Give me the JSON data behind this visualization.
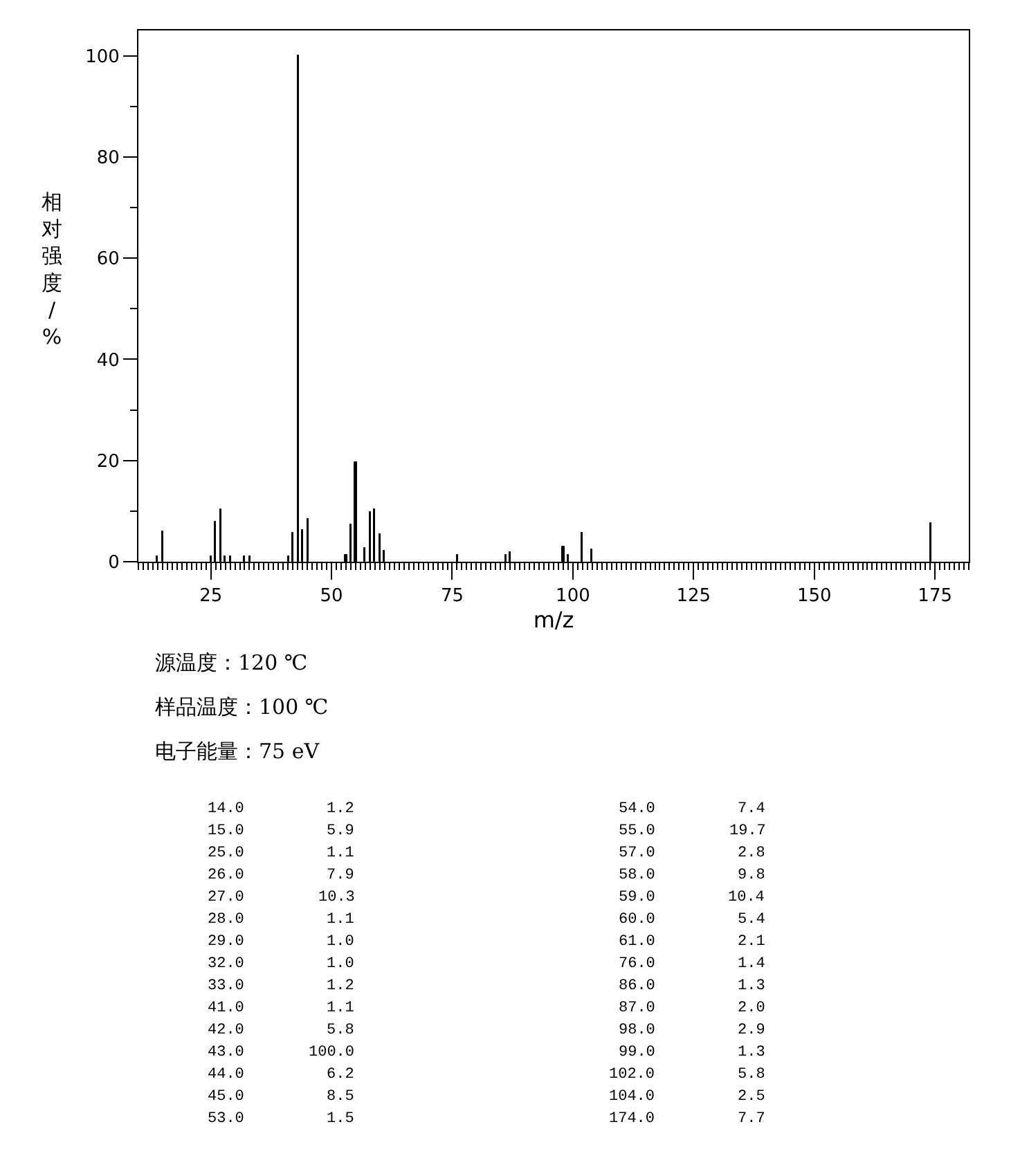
{
  "chart_data": {
    "type": "bar",
    "xlabel": "m/z",
    "ylabel": "相对强度/%",
    "color": "#000000",
    "x": [
      14,
      15,
      25,
      26,
      27,
      28,
      29,
      32,
      33,
      41,
      42,
      43,
      44,
      45,
      53,
      54,
      55,
      57,
      58,
      59,
      60,
      61,
      76,
      86,
      87,
      98,
      99,
      102,
      104,
      174
    ],
    "values": [
      1.2,
      5.9,
      1.1,
      7.9,
      10.3,
      1.1,
      1.0,
      1.0,
      1.2,
      1.1,
      5.8,
      100.0,
      6.2,
      8.5,
      1.5,
      7.4,
      19.7,
      2.8,
      9.8,
      10.4,
      5.4,
      2.1,
      1.4,
      1.3,
      2.0,
      2.9,
      1.3,
      5.8,
      2.5,
      7.7
    ],
    "xlim": [
      10,
      182
    ],
    "ylim": [
      0,
      105
    ],
    "xticks": [
      25,
      50,
      75,
      100,
      125,
      150,
      175
    ],
    "yticks": [
      0,
      20,
      40,
      60,
      80,
      100
    ],
    "annotations": [
      "源温度：120 ℃",
      "样品温度：100 ℃",
      "电子能量：75 eV",
      "14.0",
      "1.2",
      "15.0",
      "5.9",
      "25.0",
      "1.1",
      "26.0",
      "7.9",
      "27.0",
      "10.3",
      "28.0",
      "1.1",
      "29.0",
      "1.0",
      "32.0",
      "1.0",
      "33.0",
      "1.2",
      "41.0",
      "1.1",
      "42.0",
      "5.8",
      "43.0",
      "100.0",
      "44.0",
      "6.2",
      "45.0",
      "8.5",
      "53.0",
      "1.5",
      "54.0",
      "7.4",
      "55.0",
      "19.7",
      "57.0",
      "2.8",
      "58.0",
      "9.8",
      "59.0",
      "10.4",
      "60.0",
      "5.4",
      "61.0",
      "2.1",
      "76.0",
      "1.4",
      "86.0",
      "1.3",
      "87.0",
      "2.0",
      "98.0",
      "2.9",
      "99.0",
      "1.3",
      "102.0",
      "5.8",
      "104.0",
      "2.5",
      "174.0",
      "7.7"
    ]
  }
}
